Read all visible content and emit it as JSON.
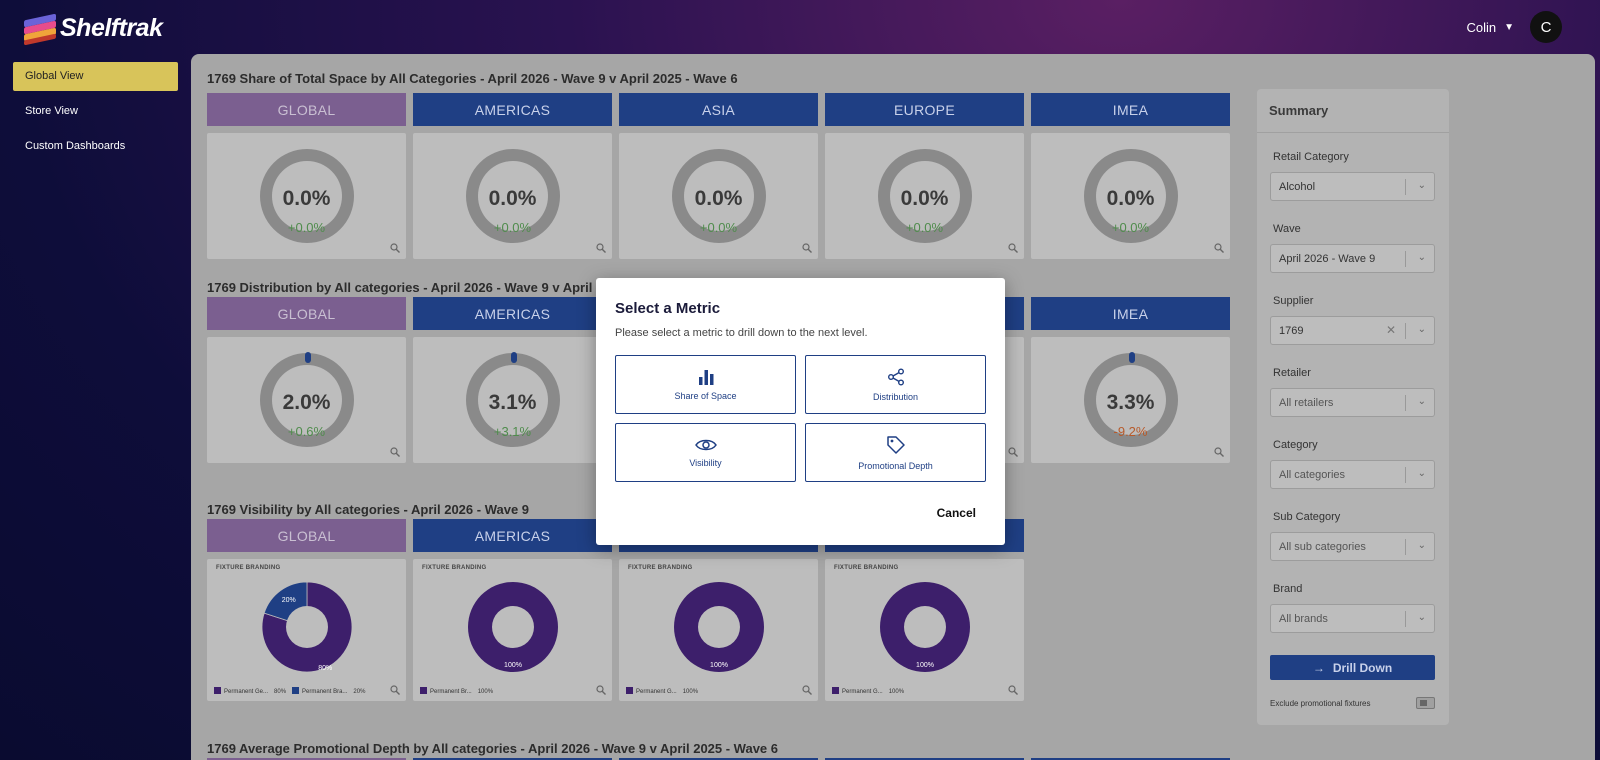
{
  "app": {
    "logo_text": "Shelftrak",
    "user_name": "Colin",
    "avatar_initial": "C"
  },
  "sidebar": {
    "items": [
      {
        "label": "Global View",
        "active": true
      },
      {
        "label": "Store View",
        "active": false
      },
      {
        "label": "Custom Dashboards",
        "active": false
      }
    ]
  },
  "sections": {
    "share": {
      "title": "1769 Share of Total Space by All Categories - April 2026 - Wave 9 v April 2025 - Wave 6",
      "regions": [
        "GLOBAL",
        "AMERICAS",
        "ASIA",
        "EUROPE",
        "IMEA"
      ],
      "values": [
        "0.0%",
        "0.0%",
        "0.0%",
        "0.0%",
        "0.0%"
      ],
      "changes": [
        "+0.0%",
        "+0.0%",
        "+0.0%",
        "+0.0%",
        "+0.0%"
      ]
    },
    "distribution": {
      "title": "1769 Distribution by All categories - April 2026 - Wave 9 v April 2025",
      "regions": [
        "GLOBAL",
        "AMERICAS",
        "IMEA"
      ],
      "values": [
        "2.0%",
        "3.1%",
        "3.3%"
      ],
      "changes": [
        "+0.6%",
        "+3.1%",
        "-9.2%"
      ]
    },
    "visibility": {
      "title": "1769 Visibility by All categories - April 2026 - Wave 9",
      "regions": [
        "GLOBAL",
        "AMERICAS"
      ],
      "card_label": "FIXTURE BRANDING",
      "cards": [
        {
          "slices": [
            {
              "label": "Permanent Ge...",
              "value": 80,
              "text": "80%",
              "color": "#3d1f6b"
            },
            {
              "label": "Permanent Bra...",
              "value": 20,
              "text": "20%",
              "color": "#1f3f84"
            }
          ]
        },
        {
          "slices": [
            {
              "label": "Permanent Br...",
              "value": 100,
              "text": "100%",
              "color": "#3d1f6b"
            }
          ]
        },
        {
          "slices": [
            {
              "label": "Permanent G...",
              "value": 100,
              "text": "100%",
              "color": "#3d1f6b"
            }
          ]
        },
        {
          "slices": [
            {
              "label": "Permanent G...",
              "value": 100,
              "text": "100%",
              "color": "#3d1f6b"
            }
          ]
        }
      ]
    },
    "promo": {
      "title": "1769 Average Promotional Depth by All categories - April 2026 - Wave 9 v April 2025 - Wave 6"
    }
  },
  "summary": {
    "title": "Summary",
    "filters": [
      {
        "label": "Retail Category",
        "value": "Alcohol",
        "placeholder": false,
        "clearable": false
      },
      {
        "label": "Wave",
        "value": "April 2026 - Wave 9",
        "placeholder": false,
        "clearable": false
      },
      {
        "label": "Supplier",
        "value": "1769",
        "placeholder": false,
        "clearable": true
      },
      {
        "label": "Retailer",
        "value": "All retailers",
        "placeholder": true,
        "clearable": false
      },
      {
        "label": "Category",
        "value": "All categories",
        "placeholder": true,
        "clearable": false
      },
      {
        "label": "Sub Category",
        "value": "All sub categories",
        "placeholder": true,
        "clearable": false
      },
      {
        "label": "Brand",
        "value": "All brands",
        "placeholder": true,
        "clearable": false
      }
    ],
    "drill_label": "Drill Down",
    "exclude_label": "Exclude promotional fixtures"
  },
  "modal": {
    "title": "Select a Metric",
    "subtitle": "Please select a metric to drill down to the next level.",
    "options": [
      {
        "label": "Share of Space",
        "icon": "bar-chart-icon"
      },
      {
        "label": "Distribution",
        "icon": "share-icon"
      },
      {
        "label": "Visibility",
        "icon": "eye-icon"
      },
      {
        "label": "Promotional Depth",
        "icon": "tag-icon"
      }
    ],
    "cancel_label": "Cancel"
  },
  "colors": {
    "brand_blue": "#1f3f84",
    "global_purple": "#7b5f90",
    "active_nav": "#d8c45a",
    "positive": "#4f8c4c",
    "negative": "#b75a2a"
  }
}
